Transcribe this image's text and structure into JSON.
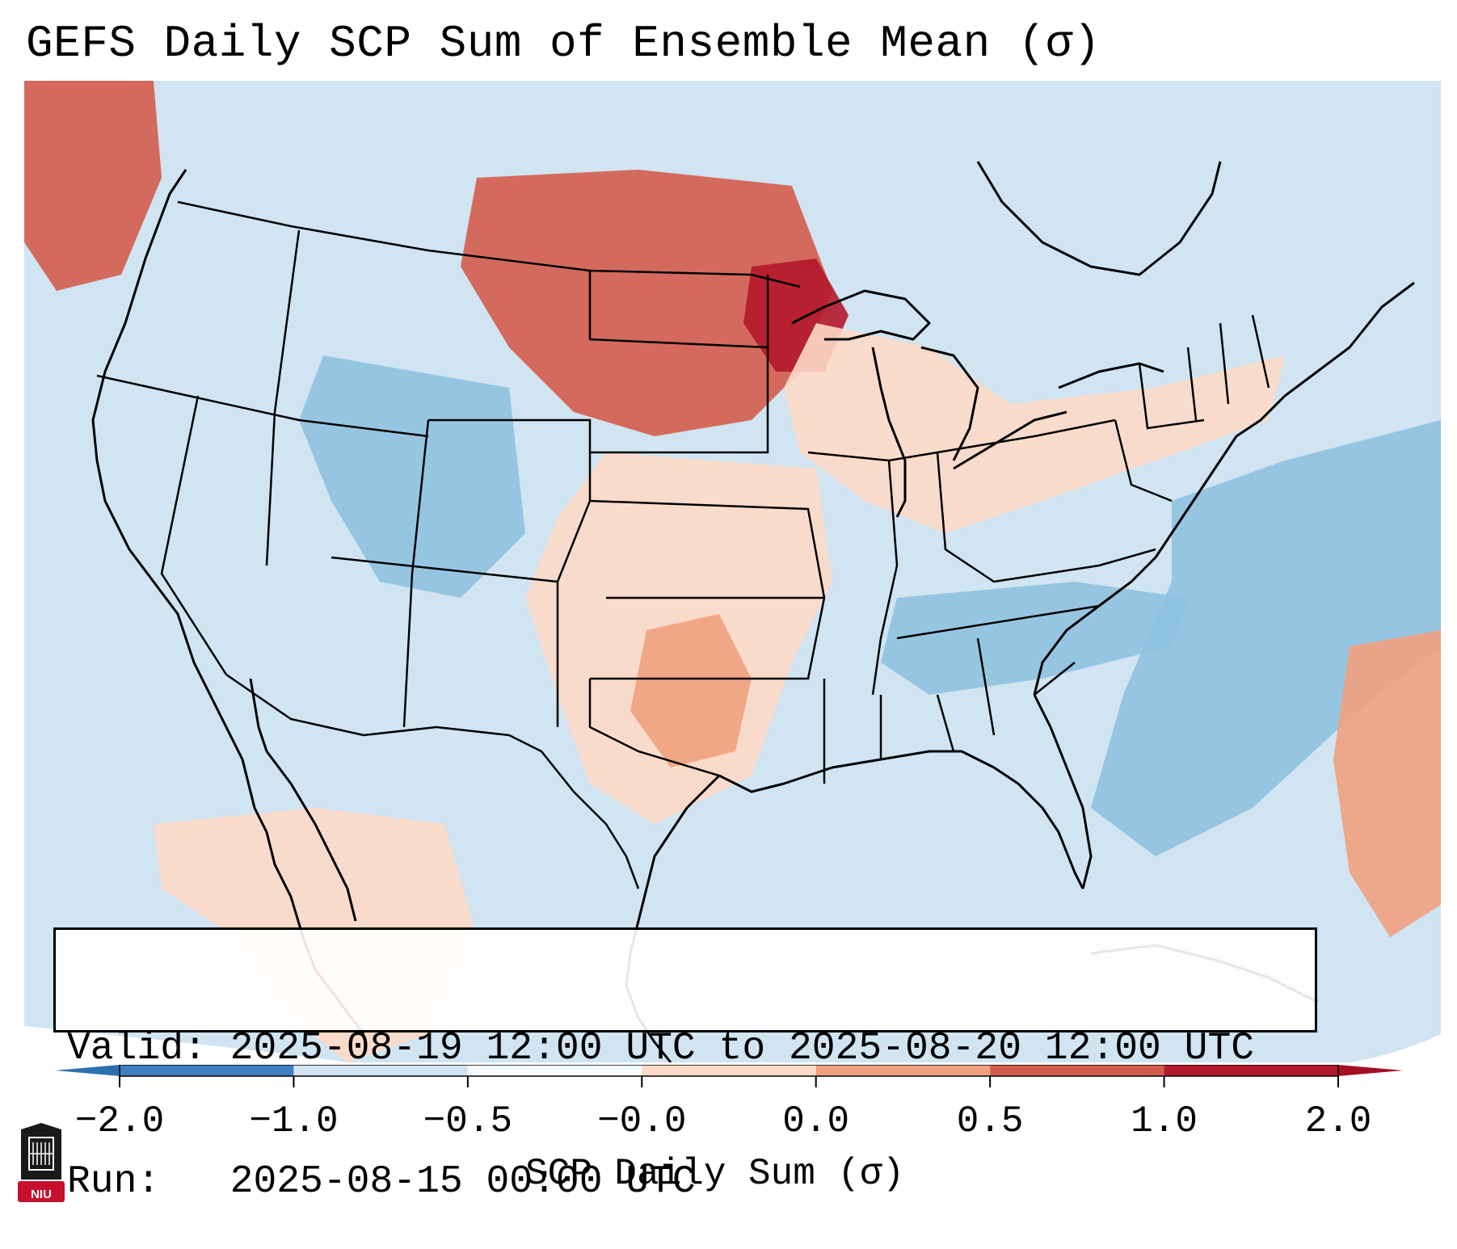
{
  "title": "GEFS Daily SCP Sum of Ensemble Mean (σ)",
  "info": {
    "valid_label": "Valid:",
    "valid_text": "2025-08-19 12:00 UTC to 2025-08-20 12:00 UTC",
    "run_label": "Run:",
    "run_text": "2025-08-15 00:00 UTC"
  },
  "colorbar": {
    "label": "SCP Daily Sum (σ)",
    "ticks": [
      "−2.0",
      "−1.0",
      "−0.5",
      "−0.0",
      "0.0",
      "0.5",
      "1.0",
      "2.0"
    ],
    "colors": [
      "#3d7fbf",
      "#8ec1df",
      "#d0e4f1",
      "#f7fbff",
      "#fdd9c6",
      "#f0a07e",
      "#d45c4d",
      "#b2182b"
    ],
    "extend_low_color": "#2b6fb0",
    "extend_high_color": "#a50f23"
  },
  "logo": {
    "text": "NIU",
    "color": "#c8102e"
  },
  "map": {
    "ocean_color": "#d0e4f1",
    "regions": [
      {
        "name": "northern-plains-high",
        "level": "1.0",
        "color": "#d45c4d"
      },
      {
        "name": "upper-midwest-high",
        "level": "2.0",
        "color": "#b2182b"
      },
      {
        "name": "great-lakes-slight",
        "level": "0.0",
        "color": "#fdd9c6"
      },
      {
        "name": "southern-plains-slight",
        "level": "0.0",
        "color": "#fdd9c6"
      },
      {
        "name": "central-texas-moderate",
        "level": "0.5",
        "color": "#f0a07e"
      },
      {
        "name": "interior-west-low",
        "level": "−1.0",
        "color": "#8ec1df"
      },
      {
        "name": "atlantic-low",
        "level": "−1.0",
        "color": "#8ec1df"
      },
      {
        "name": "tennessee-valley-low",
        "level": "−1.0",
        "color": "#8ec1df"
      },
      {
        "name": "pacific-northwest-high",
        "level": "1.0",
        "color": "#d45c4d"
      },
      {
        "name": "mexico-slight",
        "level": "0.0",
        "color": "#fdd9c6"
      },
      {
        "name": "atlantic-east-slight",
        "level": "0.5",
        "color": "#f0a07e"
      }
    ]
  }
}
